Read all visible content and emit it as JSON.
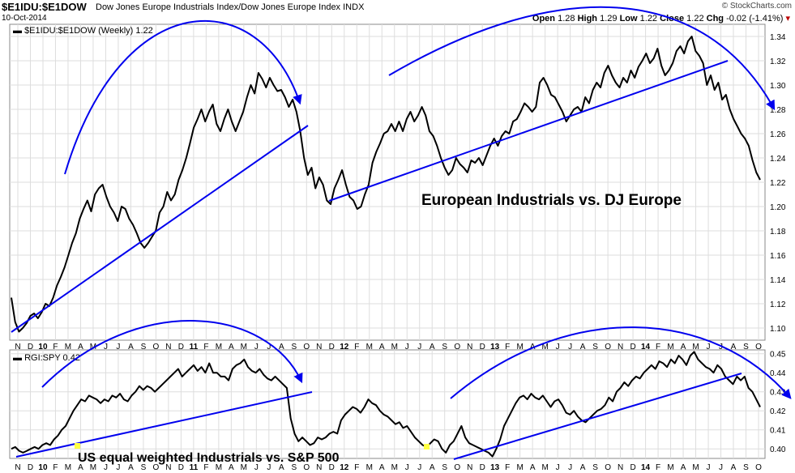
{
  "header": {
    "symbol": "$E1IDU:$E1DOW",
    "description": "Dow Jones Europe Industrials Index/Dow Jones Europe Index",
    "exchange": "INDX",
    "date": "10-Oct-2014",
    "watermark": "© StockCharts.com",
    "open_label": "Open",
    "open": "1.28",
    "high_label": "High",
    "high": "1.29",
    "low_label": "Low",
    "low": "1.22",
    "close_label": "Close",
    "close": "1.22",
    "chg_label": "Chg",
    "chg": "-0.02 (-1.41%)"
  },
  "colors": {
    "price": "#000000",
    "annotation": "#0000ee",
    "marker": "#ffff44",
    "grid": "#dddddd"
  },
  "months": [
    "N",
    "D",
    "10",
    "F",
    "M",
    "A",
    "M",
    "J",
    "J",
    "A",
    "S",
    "O",
    "N",
    "D",
    "11",
    "F",
    "M",
    "A",
    "M",
    "J",
    "J",
    "A",
    "S",
    "O",
    "N",
    "D",
    "12",
    "F",
    "M",
    "A",
    "M",
    "J",
    "J",
    "A",
    "S",
    "O",
    "N",
    "D",
    "13",
    "F",
    "M",
    "A",
    "M",
    "J",
    "J",
    "A",
    "S",
    "O",
    "N",
    "D",
    "14",
    "F",
    "M",
    "A",
    "M",
    "J",
    "J",
    "A",
    "S",
    "O"
  ],
  "chart_data": [
    {
      "type": "line",
      "series_label": "$E1IDU:$E1DOW (Weekly) 1.22",
      "annotation": "European Industrials vs. DJ Europe",
      "ylim": [
        1.09,
        1.35
      ],
      "yticks": [
        "1.10",
        "1.12",
        "1.14",
        "1.16",
        "1.18",
        "1.20",
        "1.22",
        "1.24",
        "1.26",
        "1.28",
        "1.30",
        "1.32",
        "1.34"
      ],
      "x_start": "2009-11",
      "x_end": "2014-10",
      "values": [
        1.125,
        1.105,
        1.097,
        1.1,
        1.104,
        1.11,
        1.112,
        1.108,
        1.113,
        1.12,
        1.118,
        1.125,
        1.135,
        1.142,
        1.15,
        1.16,
        1.17,
        1.178,
        1.19,
        1.198,
        1.205,
        1.196,
        1.21,
        1.215,
        1.218,
        1.208,
        1.2,
        1.195,
        1.188,
        1.2,
        1.198,
        1.19,
        1.185,
        1.178,
        1.17,
        1.166,
        1.17,
        1.175,
        1.18,
        1.195,
        1.2,
        1.212,
        1.205,
        1.21,
        1.222,
        1.23,
        1.24,
        1.252,
        1.265,
        1.272,
        1.28,
        1.27,
        1.278,
        1.284,
        1.268,
        1.262,
        1.272,
        1.28,
        1.27,
        1.262,
        1.27,
        1.278,
        1.29,
        1.3,
        1.293,
        1.31,
        1.305,
        1.298,
        1.306,
        1.3,
        1.295,
        1.296,
        1.29,
        1.282,
        1.288,
        1.278,
        1.262,
        1.24,
        1.226,
        1.232,
        1.215,
        1.224,
        1.218,
        1.205,
        1.202,
        1.215,
        1.222,
        1.23,
        1.218,
        1.208,
        1.205,
        1.198,
        1.2,
        1.21,
        1.218,
        1.236,
        1.245,
        1.252,
        1.26,
        1.262,
        1.268,
        1.262,
        1.27,
        1.262,
        1.272,
        1.278,
        1.27,
        1.275,
        1.282,
        1.275,
        1.262,
        1.258,
        1.25,
        1.24,
        1.232,
        1.226,
        1.23,
        1.24,
        1.235,
        1.232,
        1.228,
        1.238,
        1.236,
        1.24,
        1.234,
        1.242,
        1.25,
        1.256,
        1.25,
        1.258,
        1.262,
        1.26,
        1.27,
        1.272,
        1.278,
        1.285,
        1.282,
        1.278,
        1.282,
        1.302,
        1.306,
        1.3,
        1.292,
        1.29,
        1.284,
        1.278,
        1.27,
        1.275,
        1.28,
        1.282,
        1.278,
        1.29,
        1.285,
        1.296,
        1.302,
        1.298,
        1.31,
        1.316,
        1.308,
        1.302,
        1.298,
        1.306,
        1.302,
        1.312,
        1.306,
        1.315,
        1.32,
        1.326,
        1.318,
        1.322,
        1.33,
        1.316,
        1.308,
        1.312,
        1.318,
        1.328,
        1.332,
        1.326,
        1.336,
        1.34,
        1.328,
        1.324,
        1.318,
        1.3,
        1.308,
        1.296,
        1.302,
        1.288,
        1.292,
        1.28,
        1.272,
        1.266,
        1.26,
        1.256,
        1.25,
        1.238,
        1.228,
        1.222
      ]
    },
    {
      "type": "line",
      "series_label": "RGI:SPY 0.42",
      "annotation": "US equal weighted Industrials vs. S&P 500",
      "ylim": [
        0.395,
        0.452
      ],
      "yticks": [
        "0.40",
        "0.41",
        "0.42",
        "0.43",
        "0.44",
        "0.45"
      ],
      "x_start": "2009-11",
      "x_end": "2014-10",
      "values": [
        0.4,
        0.401,
        0.399,
        0.398,
        0.399,
        0.4,
        0.401,
        0.4,
        0.402,
        0.403,
        0.402,
        0.405,
        0.407,
        0.41,
        0.412,
        0.416,
        0.42,
        0.423,
        0.426,
        0.425,
        0.428,
        0.427,
        0.426,
        0.424,
        0.426,
        0.425,
        0.428,
        0.427,
        0.429,
        0.426,
        0.425,
        0.428,
        0.43,
        0.433,
        0.431,
        0.433,
        0.432,
        0.43,
        0.432,
        0.434,
        0.436,
        0.438,
        0.44,
        0.442,
        0.438,
        0.44,
        0.442,
        0.444,
        0.441,
        0.443,
        0.44,
        0.445,
        0.44,
        0.44,
        0.438,
        0.438,
        0.436,
        0.442,
        0.444,
        0.445,
        0.447,
        0.443,
        0.441,
        0.44,
        0.442,
        0.439,
        0.437,
        0.436,
        0.438,
        0.436,
        0.434,
        0.432,
        0.416,
        0.408,
        0.404,
        0.406,
        0.404,
        0.402,
        0.403,
        0.406,
        0.405,
        0.406,
        0.408,
        0.409,
        0.408,
        0.415,
        0.418,
        0.42,
        0.422,
        0.421,
        0.419,
        0.422,
        0.426,
        0.424,
        0.423,
        0.42,
        0.418,
        0.417,
        0.415,
        0.413,
        0.414,
        0.411,
        0.412,
        0.409,
        0.406,
        0.404,
        0.402,
        0.401,
        0.403,
        0.405,
        0.404,
        0.4,
        0.398,
        0.402,
        0.404,
        0.408,
        0.412,
        0.406,
        0.403,
        0.402,
        0.401,
        0.4,
        0.399,
        0.398,
        0.396,
        0.4,
        0.405,
        0.412,
        0.416,
        0.42,
        0.424,
        0.427,
        0.428,
        0.426,
        0.429,
        0.427,
        0.426,
        0.428,
        0.425,
        0.422,
        0.425,
        0.426,
        0.423,
        0.419,
        0.418,
        0.42,
        0.417,
        0.415,
        0.414,
        0.416,
        0.418,
        0.42,
        0.421,
        0.423,
        0.427,
        0.425,
        0.43,
        0.432,
        0.435,
        0.433,
        0.436,
        0.438,
        0.437,
        0.44,
        0.442,
        0.444,
        0.442,
        0.446,
        0.445,
        0.443,
        0.447,
        0.445,
        0.449,
        0.447,
        0.444,
        0.449,
        0.451,
        0.447,
        0.445,
        0.443,
        0.442,
        0.44,
        0.444,
        0.442,
        0.438,
        0.436,
        0.434,
        0.438,
        0.436,
        0.438,
        0.432,
        0.43,
        0.426,
        0.422
      ]
    }
  ]
}
